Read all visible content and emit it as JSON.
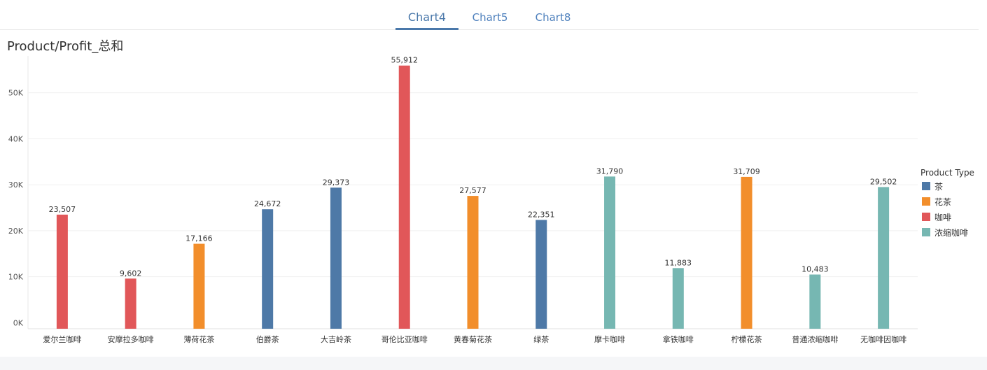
{
  "tabs": [
    {
      "label": "Chart4",
      "active": true
    },
    {
      "label": "Chart5",
      "active": false
    },
    {
      "label": "Chart8",
      "active": false
    }
  ],
  "chart_title": "Product/Profit_总和",
  "colors": {
    "茶": "#4e79a7",
    "花茶": "#f28e2b",
    "咖啡": "#e15759",
    "浓缩咖啡": "#76b7b2"
  },
  "chart_data": {
    "type": "bar",
    "title": "Product/Profit_总和",
    "categories": [
      "爱尔兰咖啡",
      "安摩拉多咖啡",
      "薄荷花茶",
      "伯爵茶",
      "大吉岭茶",
      "哥伦比亚咖啡",
      "黄春菊花茶",
      "绿茶",
      "摩卡咖啡",
      "拿铁咖啡",
      "柠檬花茶",
      "普通浓缩咖啡",
      "无咖啡因咖啡"
    ],
    "values": [
      23507,
      9602,
      17166,
      24672,
      29373,
      55912,
      27577,
      22351,
      31790,
      11883,
      31709,
      10483,
      29502
    ],
    "value_labels": [
      "23,507",
      "9,602",
      "17,166",
      "24,672",
      "29,373",
      "55,912",
      "27,577",
      "22,351",
      "31,790",
      "11,883",
      "31,709",
      "10,483",
      "29,502"
    ],
    "product_types": [
      "咖啡",
      "咖啡",
      "花茶",
      "茶",
      "茶",
      "咖啡",
      "花茶",
      "茶",
      "浓缩咖啡",
      "浓缩咖啡",
      "花茶",
      "浓缩咖啡",
      "浓缩咖啡"
    ],
    "y_ticks": [
      0,
      10000,
      20000,
      30000,
      40000,
      50000
    ],
    "y_tick_labels": [
      "0K",
      "10K",
      "20K",
      "30K",
      "40K",
      "50K"
    ],
    "ylim": [
      -1300,
      58000
    ],
    "grid": true,
    "legend": {
      "title": "Product Type",
      "placement": "right",
      "items": [
        "茶",
        "花茶",
        "咖啡",
        "浓缩咖啡"
      ]
    }
  }
}
